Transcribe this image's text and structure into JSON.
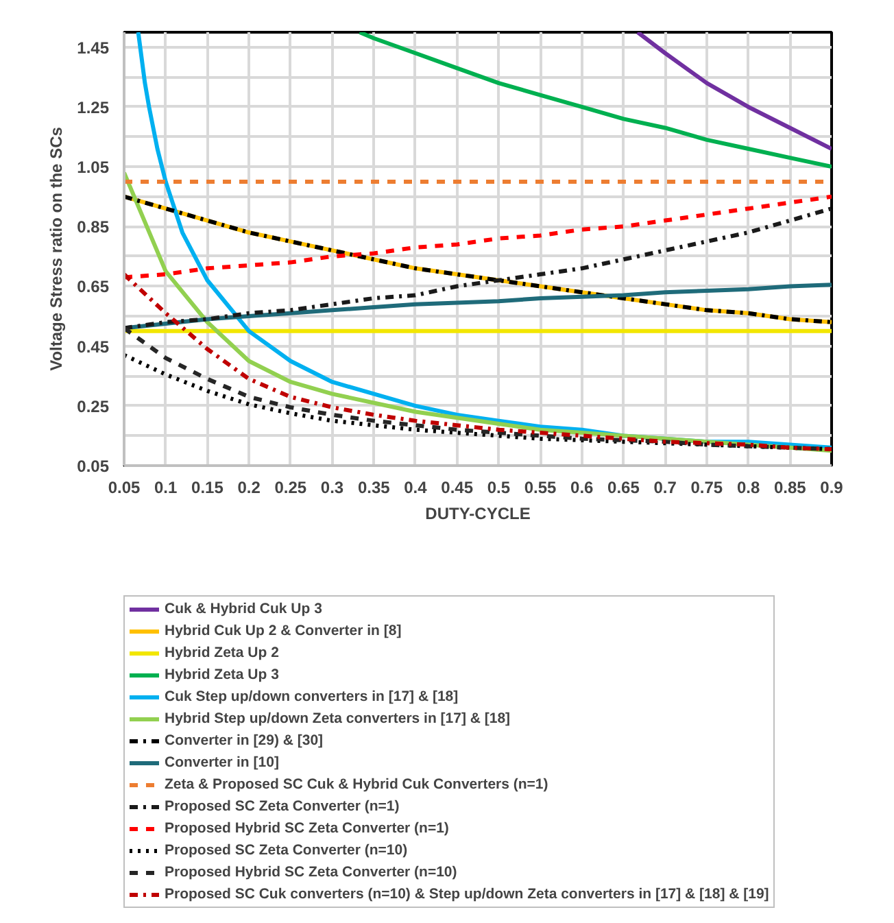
{
  "chart_data": {
    "type": "line",
    "xlabel": "DUTY-CYCLE",
    "ylabel": "Voltage Stress ratio on the SCs",
    "xlim": [
      0.05,
      0.9
    ],
    "ylim": [
      0.05,
      1.5
    ],
    "xticks": [
      0.05,
      0.1,
      0.15,
      0.2,
      0.25,
      0.3,
      0.35,
      0.4,
      0.45,
      0.5,
      0.55,
      0.6,
      0.65,
      0.7,
      0.75,
      0.8,
      0.85,
      0.9
    ],
    "yticks": [
      0.05,
      {
        "value": 0.15,
        "label": null
      },
      0.25,
      {
        "value": 0.35,
        "label": null
      },
      0.45,
      {
        "value": 0.55,
        "label": null
      },
      0.65,
      {
        "value": 0.75,
        "label": null
      },
      0.85,
      {
        "value": 0.95,
        "label": null
      },
      1.05,
      {
        "value": 1.15,
        "label": null
      },
      1.25,
      {
        "value": 1.35,
        "label": null
      },
      1.45
    ],
    "grid": true,
    "legend": "bottom",
    "marker": "none",
    "x": [
      0.05,
      0.1,
      0.15,
      0.2,
      0.25,
      0.3,
      0.35,
      0.4,
      0.45,
      0.5,
      0.55,
      0.6,
      0.65,
      0.7,
      0.75,
      0.8,
      0.85,
      0.9
    ],
    "series": [
      {
        "name": "Cuk & Hybrid Cuk Up 3",
        "color": "#7030a0",
        "line_style": "solid",
        "x": [
          0.667,
          0.7,
          0.75,
          0.8,
          0.85,
          0.9
        ],
        "values": [
          1.5,
          1.43,
          1.33,
          1.25,
          1.18,
          1.11
        ]
      },
      {
        "name": "Hybrid Cuk Up 2 & Converter in [8]",
        "color": "#ffc000",
        "line_style": "solid",
        "values": [
          0.95,
          0.91,
          0.87,
          0.83,
          0.8,
          0.77,
          0.74,
          0.71,
          0.69,
          0.67,
          0.65,
          0.63,
          0.61,
          0.59,
          0.57,
          0.56,
          0.54,
          0.53
        ]
      },
      {
        "name": "Hybrid Zeta Up 2",
        "color": "#f2e600",
        "line_style": "solid",
        "values": [
          0.5,
          0.5,
          0.5,
          0.5,
          0.5,
          0.5,
          0.5,
          0.5,
          0.5,
          0.5,
          0.5,
          0.5,
          0.5,
          0.5,
          0.5,
          0.5,
          0.5,
          0.5
        ]
      },
      {
        "name": "Hybrid Zeta Up 3",
        "color": "#00b050",
        "line_style": "solid",
        "x": [
          0.333,
          0.35,
          0.4,
          0.45,
          0.5,
          0.55,
          0.6,
          0.65,
          0.7,
          0.75,
          0.8,
          0.85,
          0.9
        ],
        "values": [
          1.5,
          1.48,
          1.43,
          1.38,
          1.33,
          1.29,
          1.25,
          1.21,
          1.18,
          1.14,
          1.11,
          1.08,
          1.05
        ]
      },
      {
        "name": "Cuk Step up/down converters in [17] & [18]",
        "color": "#00b0f0",
        "line_style": "solid",
        "x": [
          0.067,
          0.075,
          0.08,
          0.09,
          0.1,
          0.12,
          0.15,
          0.2,
          0.25,
          0.3,
          0.35,
          0.4,
          0.45,
          0.5,
          0.55,
          0.6,
          0.65,
          0.7,
          0.75,
          0.8,
          0.85,
          0.9
        ],
        "values": [
          1.5,
          1.33,
          1.25,
          1.11,
          1.0,
          0.83,
          0.67,
          0.5,
          0.4,
          0.33,
          0.29,
          0.25,
          0.22,
          0.2,
          0.18,
          0.17,
          0.15,
          0.14,
          0.13,
          0.13,
          0.12,
          0.11
        ]
      },
      {
        "name": "Hybrid Step up/down Zeta converters in [17] & [18]",
        "color": "#92d050",
        "line_style": "solid",
        "values": [
          1.03,
          0.7,
          0.53,
          0.4,
          0.33,
          0.29,
          0.26,
          0.23,
          0.21,
          0.19,
          0.17,
          0.16,
          0.15,
          0.14,
          0.13,
          0.12,
          0.11,
          0.1
        ]
      },
      {
        "name": "Converter in [29) & [30]",
        "color": "#000000",
        "line_style": "dashdot",
        "values": [
          0.95,
          0.91,
          0.87,
          0.83,
          0.8,
          0.77,
          0.74,
          0.71,
          0.69,
          0.67,
          0.65,
          0.63,
          0.61,
          0.59,
          0.57,
          0.56,
          0.54,
          0.53
        ]
      },
      {
        "name": "Converter in [10]",
        "color": "#1f6b7a",
        "line_style": "solid",
        "values": [
          0.51,
          0.525,
          0.54,
          0.55,
          0.56,
          0.57,
          0.58,
          0.59,
          0.595,
          0.6,
          0.61,
          0.615,
          0.62,
          0.63,
          0.635,
          0.64,
          0.65,
          0.655
        ]
      },
      {
        "name": "Zeta & Proposed SC Cuk & Hybrid Cuk Converters (n=1)",
        "color": "#ed7d31",
        "line_style": "dashed",
        "values": [
          1.0,
          1.0,
          1.0,
          1.0,
          1.0,
          1.0,
          1.0,
          1.0,
          1.0,
          1.0,
          1.0,
          1.0,
          1.0,
          1.0,
          1.0,
          1.0,
          1.0,
          1.0
        ]
      },
      {
        "name": "Proposed SC Zeta Converter (n=1)",
        "color": "#1a1a1a",
        "line_style": "dashdot",
        "values": [
          0.51,
          0.53,
          0.54,
          0.56,
          0.57,
          0.59,
          0.61,
          0.62,
          0.65,
          0.67,
          0.69,
          0.71,
          0.74,
          0.77,
          0.8,
          0.83,
          0.87,
          0.91
        ]
      },
      {
        "name": "Proposed Hybrid SC Zeta Converter (n=1)",
        "color": "#ff0000",
        "line_style": "dashed",
        "values": [
          0.68,
          0.69,
          0.71,
          0.72,
          0.73,
          0.75,
          0.76,
          0.78,
          0.79,
          0.81,
          0.82,
          0.84,
          0.85,
          0.87,
          0.89,
          0.91,
          0.93,
          0.95
        ]
      },
      {
        "name": "Proposed SC Zeta Converter (n=10)",
        "color": "#000000",
        "line_style": "dotted",
        "values": [
          0.42,
          0.355,
          0.3,
          0.255,
          0.225,
          0.2,
          0.185,
          0.17,
          0.16,
          0.15,
          0.14,
          0.135,
          0.13,
          0.125,
          0.12,
          0.115,
          0.11,
          0.105
        ]
      },
      {
        "name": "Proposed Hybrid SC Zeta Converter (n=10)",
        "color": "#262626",
        "line_style": "dashed",
        "values": [
          0.51,
          0.41,
          0.34,
          0.28,
          0.245,
          0.22,
          0.2,
          0.185,
          0.17,
          0.16,
          0.15,
          0.14,
          0.135,
          0.13,
          0.12,
          0.115,
          0.11,
          0.105
        ]
      },
      {
        "name": "Proposed SC Cuk converters (n=10) & Step up/down Zeta converters in [17] & [18] & [19]",
        "color": "#c00000",
        "line_style": "dashdot",
        "values": [
          0.69,
          0.56,
          0.44,
          0.34,
          0.28,
          0.245,
          0.22,
          0.2,
          0.185,
          0.17,
          0.16,
          0.15,
          0.14,
          0.13,
          0.125,
          0.12,
          0.11,
          0.105
        ]
      }
    ]
  }
}
